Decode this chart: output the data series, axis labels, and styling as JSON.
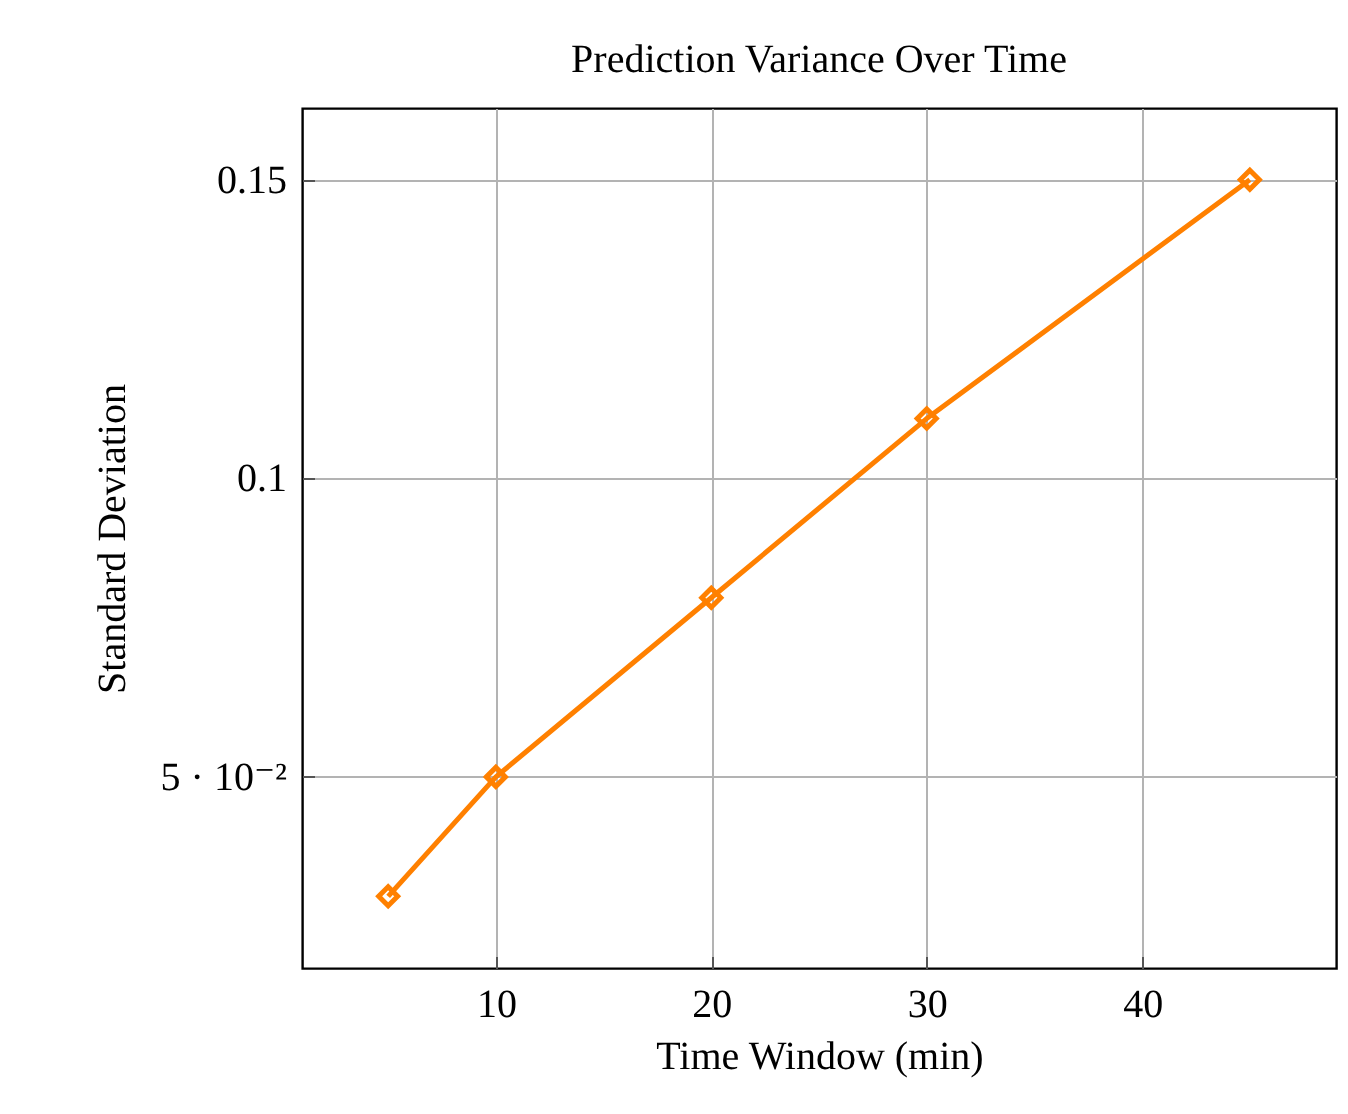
{
  "chart_data": {
    "type": "line",
    "title": "Prediction Variance Over Time",
    "xlabel": "Time Window (min)",
    "ylabel": "Standard Deviation",
    "x": [
      5,
      10,
      20,
      30,
      45
    ],
    "series": [
      {
        "color": "#ff8000",
        "values": [
          0.03,
          0.05,
          0.08,
          0.11,
          0.15
        ]
      }
    ],
    "xlim": [
      1,
      49
    ],
    "xticks": [
      10,
      20,
      30,
      40
    ],
    "ylim": [
      0.018,
      0.162
    ],
    "yticks": [
      {
        "value": 0.05,
        "label": "5 · 10⁻²"
      },
      {
        "value": 0.1,
        "label": "0.1"
      },
      {
        "value": 0.15,
        "label": "0.15"
      }
    ],
    "grid": true,
    "marker": "diamond",
    "line_style": "solid"
  }
}
